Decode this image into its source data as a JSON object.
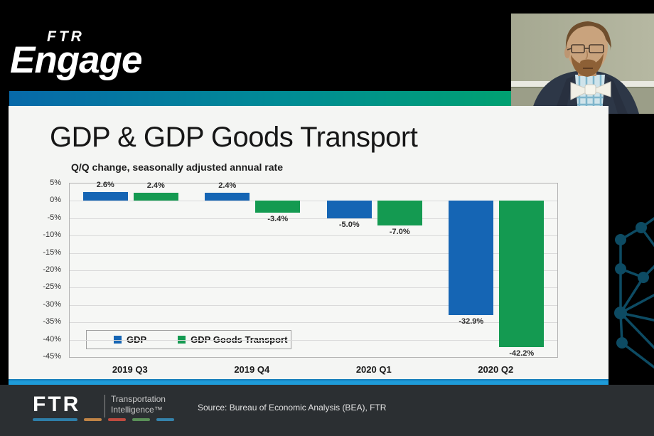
{
  "header": {
    "logo_top": "FTR",
    "logo_main": "Engage"
  },
  "slide": {
    "title": "GDP & GDP Goods Transport",
    "subtitle": "Q/Q change, seasonally adjusted annual rate"
  },
  "chart_data": {
    "type": "bar",
    "title": "GDP & GDP Goods Transport",
    "subtitle": "Q/Q change, seasonally adjusted annual rate",
    "categories": [
      "2019 Q3",
      "2019 Q4",
      "2020 Q1",
      "2020 Q2"
    ],
    "series": [
      {
        "name": "GDP",
        "color": "#1565b4",
        "values": [
          2.6,
          2.4,
          -5.0,
          -32.9
        ],
        "labels": [
          "2.6%",
          "2.4%",
          "-5.0%",
          "-32.9%"
        ]
      },
      {
        "name": "GDP Goods Transport",
        "color": "#149a51",
        "values": [
          2.4,
          -3.4,
          -7.0,
          -42.2
        ],
        "labels": [
          "2.4%",
          "-3.4%",
          "-7.0%",
          "-42.2%"
        ]
      }
    ],
    "ylim": [
      -45,
      5
    ],
    "ytick_step": 5,
    "ytick_labels": [
      "5%",
      "0%",
      "-5%",
      "-10%",
      "-15%",
      "-20%",
      "-25%",
      "-30%",
      "-35%",
      "-40%",
      "-45%"
    ],
    "grid": true,
    "legend_position": "bottom-left-inside"
  },
  "footer": {
    "logo_text": "FTR",
    "logo_sub1": "Transportation",
    "logo_sub2": "Intelligence™",
    "source": "Source: Bureau of Economic Analysis (BEA), FTR",
    "dash_colors": [
      "#2e7ea8",
      "#c08446",
      "#bf4b3f",
      "#5a9058",
      "#3583ab"
    ]
  },
  "colors": {
    "slide_accent_strip": "#1e9cd9",
    "header_band_left": "#0769a9",
    "header_band_right": "#00a171",
    "footer_bg": "#2b2f32",
    "network_pattern": "#0d4b63"
  }
}
